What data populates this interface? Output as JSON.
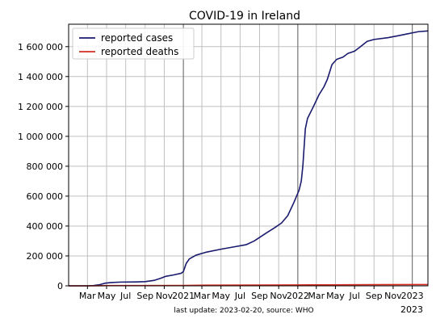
{
  "chart_data": {
    "type": "line",
    "title": "COVID-19 in Ireland",
    "footnote": "last update: 2023-02-20, source: WHO",
    "xlabel": "",
    "ylabel": "",
    "xlim": [
      "2020-01-01",
      "2023-02-20"
    ],
    "ylim": [
      0,
      1750000
    ],
    "grid": true,
    "legend_position": "top-left",
    "y_ticks": [
      {
        "value": 0,
        "label": "0"
      },
      {
        "value": 200000,
        "label": "200 000"
      },
      {
        "value": 400000,
        "label": "400 000"
      },
      {
        "value": 600000,
        "label": "600 000"
      },
      {
        "value": 800000,
        "label": "800 000"
      },
      {
        "value": 1000000,
        "label": "1 000 000"
      },
      {
        "value": 1200000,
        "label": "1 200 000"
      },
      {
        "value": 1400000,
        "label": "1 400 000"
      },
      {
        "value": 1600000,
        "label": "1 600 000"
      }
    ],
    "x_ticks": [
      {
        "date": "2020-03-01",
        "label": "Mar"
      },
      {
        "date": "2020-05-01",
        "label": "May"
      },
      {
        "date": "2020-07-01",
        "label": "Jul"
      },
      {
        "date": "2020-09-01",
        "label": "Sep"
      },
      {
        "date": "2020-11-01",
        "label": "Nov"
      },
      {
        "date": "2021-01-01",
        "label": "2021"
      },
      {
        "date": "2021-03-01",
        "label": "Mar"
      },
      {
        "date": "2021-05-01",
        "label": "May"
      },
      {
        "date": "2021-07-01",
        "label": "Jul"
      },
      {
        "date": "2021-09-01",
        "label": "Sep"
      },
      {
        "date": "2021-11-01",
        "label": "Nov"
      },
      {
        "date": "2022-01-01",
        "label": "2022"
      },
      {
        "date": "2022-03-01",
        "label": "Mar"
      },
      {
        "date": "2022-05-01",
        "label": "May"
      },
      {
        "date": "2022-07-01",
        "label": "Jul"
      },
      {
        "date": "2022-09-01",
        "label": "Sep"
      },
      {
        "date": "2022-11-01",
        "label": "Nov"
      },
      {
        "date": "2023-01-01",
        "label": "2023"
      }
    ],
    "year_marks": [
      "2021-01-01",
      "2022-01-01",
      "2023-01-01"
    ],
    "x_extra_label": {
      "date": "2023-01-01",
      "label": "2023"
    },
    "series": [
      {
        "name": "reported cases",
        "color": "#1a1a6e",
        "points": [
          [
            "2020-01-01",
            0
          ],
          [
            "2020-03-01",
            0
          ],
          [
            "2020-03-20",
            2000
          ],
          [
            "2020-04-10",
            8000
          ],
          [
            "2020-04-25",
            17000
          ],
          [
            "2020-05-15",
            22000
          ],
          [
            "2020-06-15",
            25000
          ],
          [
            "2020-08-01",
            26000
          ],
          [
            "2020-09-01",
            28000
          ],
          [
            "2020-10-01",
            37000
          ],
          [
            "2020-10-20",
            50000
          ],
          [
            "2020-11-05",
            63000
          ],
          [
            "2020-12-01",
            73000
          ],
          [
            "2020-12-25",
            84000
          ],
          [
            "2021-01-01",
            95000
          ],
          [
            "2021-01-10",
            150000
          ],
          [
            "2021-01-20",
            180000
          ],
          [
            "2021-02-10",
            205000
          ],
          [
            "2021-03-15",
            225000
          ],
          [
            "2021-05-01",
            245000
          ],
          [
            "2021-06-15",
            262000
          ],
          [
            "2021-07-20",
            275000
          ],
          [
            "2021-08-15",
            300000
          ],
          [
            "2021-09-20",
            350000
          ],
          [
            "2021-10-20",
            390000
          ],
          [
            "2021-11-10",
            420000
          ],
          [
            "2021-11-30",
            470000
          ],
          [
            "2021-12-20",
            560000
          ],
          [
            "2022-01-05",
            640000
          ],
          [
            "2022-01-12",
            700000
          ],
          [
            "2022-01-17",
            800000
          ],
          [
            "2022-01-25",
            1050000
          ],
          [
            "2022-02-01",
            1120000
          ],
          [
            "2022-02-20",
            1200000
          ],
          [
            "2022-03-10",
            1280000
          ],
          [
            "2022-03-25",
            1330000
          ],
          [
            "2022-04-05",
            1380000
          ],
          [
            "2022-04-20",
            1480000
          ],
          [
            "2022-05-05",
            1515000
          ],
          [
            "2022-05-25",
            1530000
          ],
          [
            "2022-06-10",
            1555000
          ],
          [
            "2022-07-01",
            1570000
          ],
          [
            "2022-07-20",
            1600000
          ],
          [
            "2022-08-10",
            1635000
          ],
          [
            "2022-09-01",
            1648000
          ],
          [
            "2022-10-15",
            1660000
          ],
          [
            "2022-11-15",
            1672000
          ],
          [
            "2022-12-15",
            1685000
          ],
          [
            "2023-01-01",
            1692000
          ],
          [
            "2023-01-20",
            1700000
          ],
          [
            "2023-02-20",
            1705000
          ]
        ]
      },
      {
        "name": "reported deaths",
        "color": "#d62d20",
        "points": [
          [
            "2020-01-01",
            0
          ],
          [
            "2020-03-15",
            0
          ],
          [
            "2020-05-01",
            1500
          ],
          [
            "2020-08-01",
            1770
          ],
          [
            "2021-01-01",
            2300
          ],
          [
            "2021-04-01",
            4700
          ],
          [
            "2021-09-01",
            5100
          ],
          [
            "2022-01-01",
            6000
          ],
          [
            "2022-04-01",
            6800
          ],
          [
            "2022-09-01",
            7700
          ],
          [
            "2023-01-01",
            8500
          ],
          [
            "2023-02-20",
            8700
          ]
        ]
      }
    ]
  }
}
